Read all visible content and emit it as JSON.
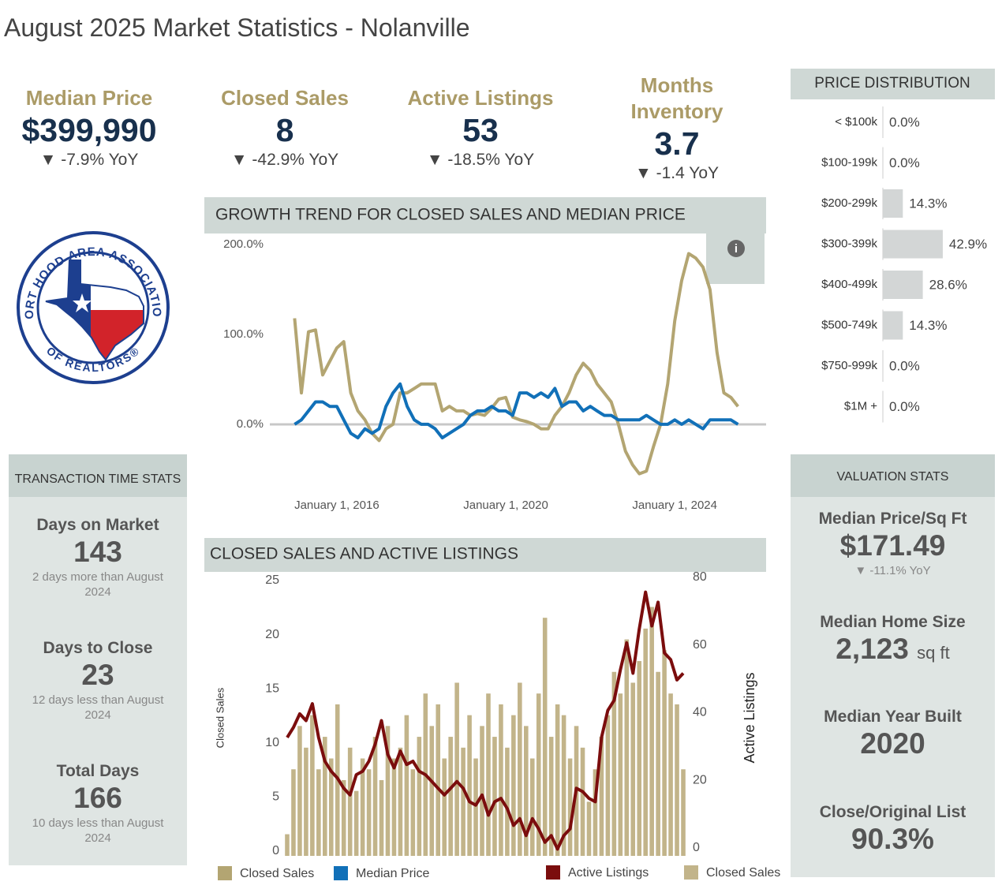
{
  "header": {
    "title": "August 2025 Market Statistics - Nolanville"
  },
  "kpis": [
    {
      "label": "Median Price",
      "value": "$399,990",
      "change": "▼ -7.9% YoY"
    },
    {
      "label": "Closed Sales",
      "value": "8",
      "change": "▼ -42.9% YoY"
    },
    {
      "label": "Active Listings",
      "value": "53",
      "change": "▼ -18.5% YoY"
    },
    {
      "label": "Months Inventory",
      "value": "3.7",
      "change": "▼ -1.4 YoY"
    }
  ],
  "logo": {
    "top": "FORT HOOD AREA ASSOCIATION",
    "bottom": "OF REALTORS®"
  },
  "transaction_stats": {
    "title": "TRANSACTION TIME STATS",
    "items": [
      {
        "label": "Days on Market",
        "value": "143",
        "note": "2 days more than August 2024"
      },
      {
        "label": "Days to Close",
        "value": "23",
        "note": "12 days less than August 2024"
      },
      {
        "label": "Total Days",
        "value": "166",
        "note": "10 days less than August 2024"
      }
    ]
  },
  "valuation_stats": {
    "title": "VALUATION STATS",
    "items": [
      {
        "label": "Median Price/Sq Ft",
        "value": "$171.49",
        "note": "▼ -11.1% YoY"
      },
      {
        "label": "Median Home Size",
        "value": "2,123",
        "unit": "sq ft"
      },
      {
        "label": "Median Year Built",
        "value": "2020"
      },
      {
        "label": "Close/Original List",
        "value": "90.3%"
      }
    ]
  },
  "chart_data": [
    {
      "type": "line",
      "title": "GROWTH TREND FOR CLOSED SALES AND MEDIAN PRICE",
      "x": [
        "2015-01-01",
        "2015-03-01",
        "2015-05-01",
        "2015-07-01",
        "2015-09-01",
        "2015-11-01",
        "2016-01-01",
        "2016-03-01",
        "2016-05-01",
        "2016-07-01",
        "2016-09-01",
        "2016-11-01",
        "2017-01-01",
        "2017-03-01",
        "2017-05-01",
        "2017-07-01",
        "2017-09-01",
        "2017-11-01",
        "2018-01-01",
        "2018-03-01",
        "2018-05-01",
        "2018-07-01",
        "2018-09-01",
        "2018-11-01",
        "2019-01-01",
        "2019-03-01",
        "2019-05-01",
        "2019-07-01",
        "2019-09-01",
        "2019-11-01",
        "2020-01-01",
        "2020-03-01",
        "2020-05-01",
        "2020-07-01",
        "2020-09-01",
        "2020-11-01",
        "2021-01-01",
        "2021-03-01",
        "2021-05-01",
        "2021-07-01",
        "2021-09-01",
        "2021-11-01",
        "2022-01-01",
        "2022-03-01",
        "2022-05-01",
        "2022-07-01",
        "2022-09-01",
        "2022-11-01",
        "2023-01-01",
        "2023-03-01",
        "2023-05-01",
        "2023-07-01",
        "2023-09-01",
        "2023-11-01",
        "2024-01-01",
        "2024-03-01",
        "2024-05-01",
        "2024-07-01",
        "2024-09-01",
        "2024-11-01",
        "2025-01-01",
        "2025-03-01",
        "2025-05-01",
        "2025-07-01"
      ],
      "series": [
        {
          "name": "Closed Sales",
          "color": "#b3a572",
          "values": [
            118,
            35,
            103,
            105,
            55,
            70,
            85,
            92,
            35,
            15,
            5,
            -10,
            -18,
            -5,
            0,
            35,
            35,
            40,
            45,
            45,
            45,
            15,
            20,
            15,
            15,
            10,
            12,
            10,
            18,
            28,
            30,
            8,
            5,
            3,
            0,
            -5,
            -5,
            10,
            20,
            35,
            55,
            68,
            60,
            45,
            35,
            25,
            0,
            -30,
            -45,
            -55,
            -52,
            -25,
            0,
            45,
            115,
            160,
            190,
            185,
            175,
            150,
            80,
            35,
            30,
            20
          ]
        },
        {
          "name": "Median Price",
          "color": "#1170b8",
          "values": [
            0,
            5,
            15,
            25,
            25,
            20,
            20,
            5,
            -10,
            -15,
            -5,
            -10,
            -5,
            20,
            35,
            45,
            20,
            5,
            0,
            0,
            -5,
            -15,
            -10,
            -5,
            0,
            10,
            15,
            15,
            20,
            15,
            15,
            10,
            35,
            35,
            30,
            35,
            30,
            40,
            20,
            25,
            25,
            15,
            20,
            15,
            10,
            10,
            5,
            5,
            5,
            5,
            10,
            5,
            0,
            0,
            5,
            0,
            5,
            0,
            -5,
            5,
            5,
            5,
            5,
            0
          ]
        }
      ],
      "xlim": [
        "2014-06-01",
        "2026-03-01"
      ],
      "xticks": [
        {
          "value": "2016-01-01",
          "label": "January 1, 2016"
        },
        {
          "value": "2020-01-01",
          "label": "January 1, 2020"
        },
        {
          "value": "2024-01-01",
          "label": "January 1, 2024"
        }
      ],
      "ylim": [
        -65,
        215
      ],
      "yticks": [
        {
          "value": 0,
          "label": "0.0%"
        },
        {
          "value": 100,
          "label": "100.0%"
        },
        {
          "value": 200,
          "label": "200.0%"
        }
      ],
      "legend": "bottom-left"
    },
    {
      "type": "bar-line",
      "title": "CLOSED SALES AND ACTIVE LISTINGS",
      "categories": [
        null,
        null,
        null,
        null,
        null,
        null,
        null,
        null,
        null,
        null,
        null,
        null,
        null,
        null,
        null,
        null,
        null,
        null,
        null,
        null,
        null,
        null,
        null,
        null,
        null,
        null,
        null,
        null,
        null,
        null,
        null,
        null,
        null,
        null,
        null,
        null,
        null,
        null,
        null,
        null,
        null,
        null,
        null,
        null,
        null,
        null,
        null,
        null,
        null,
        null,
        null,
        null,
        null,
        null,
        null,
        null,
        null,
        null,
        null,
        null,
        null,
        null,
        null,
        null
      ],
      "series": [
        {
          "name": "Active Listings",
          "type": "line",
          "axis": "y2",
          "color": "#7b0d0d",
          "values": [
            35,
            38,
            42,
            40,
            45,
            35,
            28,
            25,
            23,
            20,
            18,
            24,
            25,
            28,
            33,
            40,
            30,
            26,
            31,
            27,
            28,
            25,
            24,
            22,
            20,
            18,
            20,
            22,
            20,
            16,
            15,
            18,
            12,
            16,
            17,
            14,
            9,
            11,
            6,
            11,
            8,
            4,
            6,
            2,
            6,
            8,
            20,
            19,
            17,
            16,
            35,
            43,
            46,
            55,
            63,
            54,
            67,
            78,
            68,
            75,
            60,
            58,
            52,
            54
          ]
        },
        {
          "name": "Closed Sales",
          "type": "bar",
          "color": "#c2b48a",
          "values": [
            2,
            8,
            12,
            10,
            13,
            8,
            11,
            9,
            14,
            7,
            10,
            6,
            9,
            8,
            11,
            7,
            12,
            9,
            10,
            13,
            8,
            11,
            15,
            12,
            14,
            9,
            11,
            16,
            10,
            13,
            9,
            12,
            15,
            11,
            14,
            10,
            13,
            16,
            12,
            9,
            15,
            22,
            11,
            14,
            13,
            9,
            12,
            10,
            5,
            8,
            11,
            13,
            17,
            15,
            20,
            16,
            18,
            21,
            23,
            17,
            19,
            15,
            14,
            8
          ]
        }
      ],
      "ylabel": "Closed Sales",
      "y2label": "Active Listings",
      "ylim": [
        0,
        25
      ],
      "yticks": [
        0,
        5,
        10,
        15,
        20,
        25
      ],
      "y2lim": [
        0,
        80
      ],
      "y2ticks": [
        0,
        20,
        40,
        60,
        80
      ],
      "legend": "bottom-right"
    },
    {
      "type": "hbar",
      "title": "PRICE DISTRIBUTION",
      "categories": [
        "< $100k",
        "$100-199k",
        "$200-299k",
        "$300-399k",
        "$400-499k",
        "$500-749k",
        "$750-999k",
        "$1M +"
      ],
      "values": [
        0,
        0,
        14.3,
        42.9,
        28.6,
        14.3,
        0,
        0
      ],
      "value_labels": [
        "0.0%",
        "0.0%",
        "14.3%",
        "42.9%",
        "28.6%",
        "14.3%",
        "0.0%",
        "0.0%"
      ],
      "color": "#d3d6d6"
    }
  ]
}
